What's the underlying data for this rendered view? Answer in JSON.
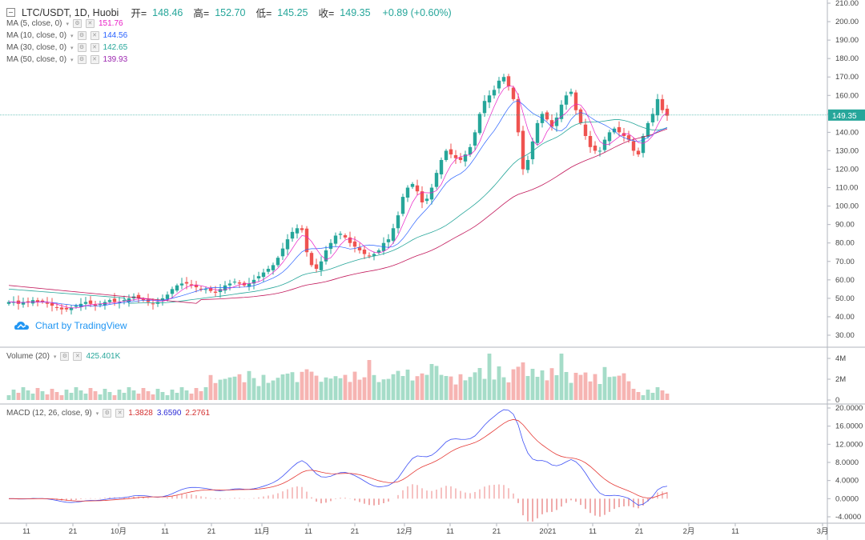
{
  "header": {
    "symbol": "LTC/USDT, 1D, Huobi",
    "open_label": "开=",
    "open": "148.46",
    "high_label": "高=",
    "high": "152.70",
    "low_label": "低=",
    "low": "145.25",
    "close_label": "收=",
    "close": "149.35",
    "change": "+0.89 (+0.60%)"
  },
  "indicators": [
    {
      "label": "MA (5, close, 0)",
      "value": "151.76",
      "color": "#e91ec6"
    },
    {
      "label": "MA (10, close, 0)",
      "value": "144.56",
      "color": "#2962ff"
    },
    {
      "label": "MA (30, close, 0)",
      "value": "142.65",
      "color": "#26a69a"
    },
    {
      "label": "MA (50, close, 0)",
      "value": "139.93",
      "color": "#9c27b0"
    }
  ],
  "volume": {
    "label": "Volume (20)",
    "value": "425.401K"
  },
  "macd": {
    "label": "MACD (12, 26, close, 9)",
    "v1": "1.3828",
    "v2": "3.6590",
    "v3": "2.2761"
  },
  "watermark": "Chart by TradingView",
  "price_tag": "149.35",
  "colors": {
    "up": "#26a69a",
    "down": "#ef5350",
    "up_light": "#a5dcc8",
    "down_light": "#f6b4b2"
  },
  "chart_data": {
    "type": "candlestick",
    "price_axis": [
      "210.00",
      "200.00",
      "190.00",
      "180.00",
      "170.00",
      "160.00",
      "150.00",
      "140.00",
      "130.00",
      "120.00",
      "110.00",
      "100.00",
      "90.00",
      "80.00",
      "70.00",
      "60.00",
      "50.00",
      "40.00",
      "30.00"
    ],
    "volume_axis": [
      "4M",
      "2M",
      "0"
    ],
    "macd_axis": [
      "20.0000",
      "16.0000",
      "12.0000",
      "8.0000",
      "4.0000",
      "0.0000",
      "-4.0000"
    ],
    "time_axis": [
      "11",
      "21",
      "10月",
      "11",
      "21",
      "11月",
      "11",
      "21",
      "12月",
      "11",
      "21",
      "2021",
      "11",
      "21",
      "2月",
      "11",
      "3月"
    ],
    "close_series": [
      48,
      48,
      47,
      48,
      48,
      49,
      48,
      48,
      47,
      46,
      45,
      44,
      44,
      45,
      46,
      47,
      48,
      47,
      46,
      47,
      48,
      49,
      48,
      48,
      49,
      50,
      51,
      50,
      49,
      48,
      47,
      48,
      50,
      52,
      55,
      57,
      58,
      58,
      57,
      56,
      55,
      55,
      54,
      53,
      55,
      57,
      58,
      59,
      58,
      57,
      58,
      60,
      62,
      64,
      66,
      68,
      72,
      77,
      82,
      86,
      88,
      87,
      75,
      68,
      66,
      70,
      76,
      80,
      84,
      85,
      83,
      80,
      78,
      76,
      74,
      73,
      74,
      76,
      80,
      82,
      88,
      95,
      105,
      110,
      112,
      108,
      102,
      104,
      110,
      118,
      125,
      130,
      128,
      126,
      125,
      128,
      132,
      140,
      150,
      157,
      160,
      163,
      168,
      170,
      165,
      158,
      140,
      120,
      125,
      135,
      145,
      150,
      147,
      143,
      148,
      155,
      160,
      162,
      152,
      145,
      138,
      132,
      130,
      130,
      136,
      140,
      142,
      140,
      138,
      136,
      130,
      128,
      138,
      145,
      150,
      158,
      152,
      149
    ],
    "ma30_last": 142.65,
    "ma50_last": 139.93
  }
}
